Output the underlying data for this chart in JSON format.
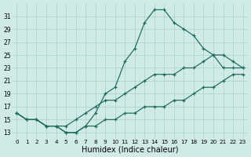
{
  "xlabel": "Humidex (Indice chaleur)",
  "x": [
    0,
    1,
    2,
    3,
    4,
    5,
    6,
    7,
    8,
    9,
    10,
    11,
    12,
    13,
    14,
    15,
    16,
    17,
    18,
    19,
    20,
    21,
    22,
    23
  ],
  "y_jagged": [
    16,
    15,
    15,
    14,
    14,
    13,
    13,
    14,
    16,
    19,
    20,
    24,
    26,
    30,
    32,
    32,
    30,
    29,
    28,
    26,
    25,
    23,
    23,
    23
  ],
  "y_upper_diag": [
    16,
    15,
    15,
    14,
    14,
    14,
    15,
    16,
    17,
    18,
    18,
    19,
    20,
    21,
    22,
    22,
    22,
    23,
    23,
    24,
    25,
    25,
    24,
    23
  ],
  "y_lower_diag": [
    16,
    15,
    15,
    14,
    14,
    13,
    13,
    14,
    14,
    15,
    15,
    16,
    16,
    17,
    17,
    17,
    18,
    18,
    19,
    20,
    20,
    21,
    22,
    22
  ],
  "ylim": [
    12,
    33
  ],
  "yticks": [
    13,
    15,
    17,
    19,
    21,
    23,
    25,
    27,
    29,
    31
  ],
  "bg_color": "#d0ebe6",
  "grid_color": "#a8cfc9",
  "line_color": "#1a6b5a"
}
